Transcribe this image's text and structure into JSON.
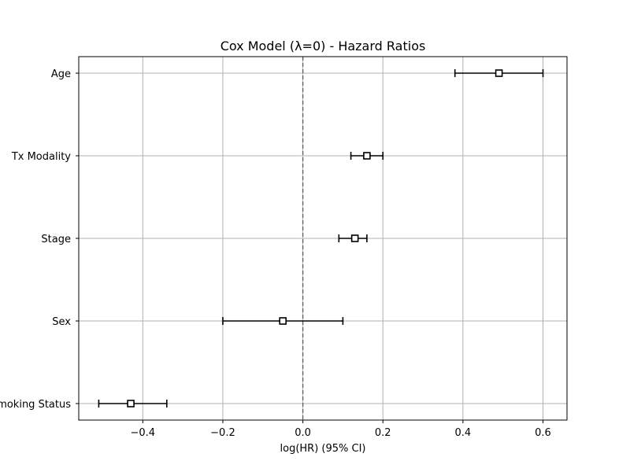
{
  "chart_data": {
    "type": "forest",
    "title": "Cox Model (λ=0) - Hazard Ratios",
    "xlabel": "log(HR) (95% CI)",
    "ylabel": "",
    "xlim": [
      -0.56,
      0.66
    ],
    "grid": true,
    "reference_line": {
      "x": 0.0,
      "style": "dashed"
    },
    "x_ticks": [
      -0.4,
      -0.2,
      0.0,
      0.2,
      0.4,
      0.6
    ],
    "x_tick_labels": [
      "−0.4",
      "−0.2",
      "0.0",
      "0.2",
      "0.4",
      "0.6"
    ],
    "rows": [
      {
        "label": "Age",
        "estimate": 0.49,
        "lower": 0.38,
        "upper": 0.6
      },
      {
        "label": "Tx Modality",
        "estimate": 0.16,
        "lower": 0.12,
        "upper": 0.2
      },
      {
        "label": "Stage",
        "estimate": 0.13,
        "lower": 0.09,
        "upper": 0.16
      },
      {
        "label": "Sex",
        "estimate": -0.05,
        "lower": -0.2,
        "upper": 0.1
      },
      {
        "label": "Smoking Status",
        "estimate": -0.43,
        "lower": -0.51,
        "upper": -0.34
      }
    ]
  }
}
